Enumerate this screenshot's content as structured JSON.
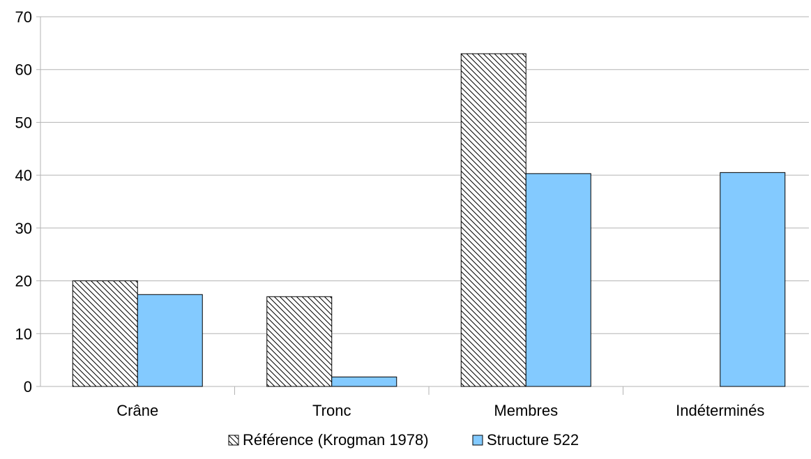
{
  "chart_data": {
    "type": "bar",
    "categories": [
      "Crâne",
      "Tronc",
      "Membres",
      "Indéterminés"
    ],
    "series": [
      {
        "name": "Référence (Krogman 1978)",
        "values": [
          20,
          17,
          63,
          null
        ],
        "pattern": "hatched",
        "color": "#000000"
      },
      {
        "name": "Structure 522",
        "values": [
          17.4,
          1.8,
          40.3,
          40.5
        ],
        "pattern": "solid",
        "color": "#83caff"
      }
    ],
    "ylim": [
      0,
      70
    ],
    "yticks": [
      0,
      10,
      20,
      30,
      40,
      50,
      60,
      70
    ],
    "grid": true,
    "legend_position": "bottom"
  }
}
